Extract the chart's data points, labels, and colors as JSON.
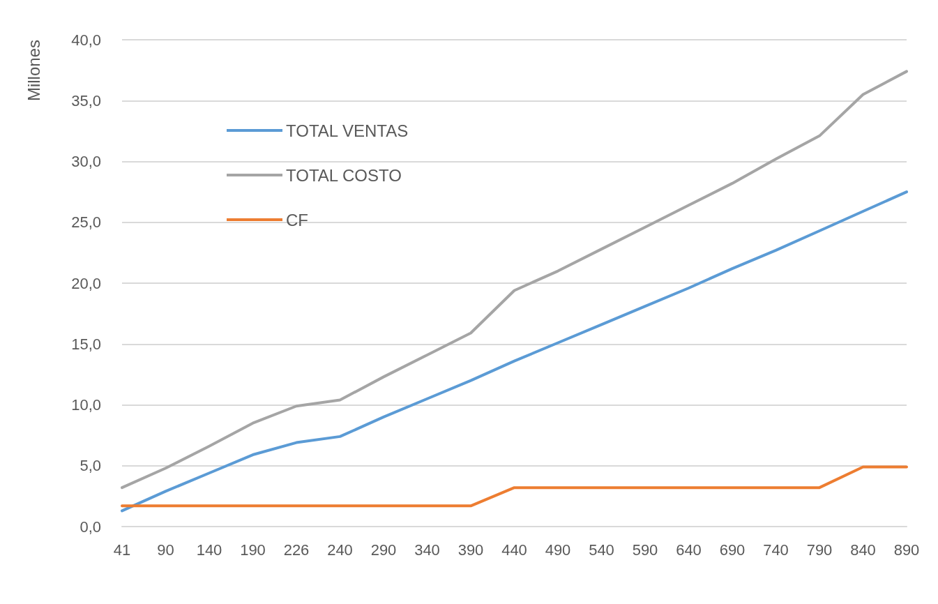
{
  "chart_data": {
    "type": "line",
    "ylabel": "Millones",
    "categories": [
      "41",
      "90",
      "140",
      "190",
      "226",
      "240",
      "290",
      "340",
      "390",
      "440",
      "490",
      "540",
      "590",
      "640",
      "690",
      "740",
      "790",
      "840",
      "890"
    ],
    "series": [
      {
        "name": "TOTAL VENTAS",
        "color": "#5b9bd5",
        "values": [
          1.3,
          2.9,
          4.4,
          5.9,
          6.9,
          7.4,
          9.0,
          10.5,
          12.0,
          13.6,
          15.1,
          16.6,
          18.1,
          19.6,
          21.2,
          22.7,
          24.3,
          25.9,
          27.5
        ]
      },
      {
        "name": "TOTAL COSTO",
        "color": "#a5a5a5",
        "values": [
          3.2,
          4.8,
          6.6,
          8.5,
          9.9,
          10.4,
          12.3,
          14.1,
          15.9,
          19.4,
          21.0,
          22.8,
          24.6,
          26.4,
          28.2,
          30.2,
          32.1,
          35.5,
          37.4
        ]
      },
      {
        "name": "CF",
        "color": "#ed7d31",
        "values": [
          1.7,
          1.7,
          1.7,
          1.7,
          1.7,
          1.7,
          1.7,
          1.7,
          1.7,
          3.2,
          3.2,
          3.2,
          3.2,
          3.2,
          3.2,
          3.2,
          3.2,
          4.9,
          4.9
        ]
      }
    ],
    "ylim": [
      0,
      40
    ],
    "yticks": [
      {
        "value": 0,
        "label": "0,0"
      },
      {
        "value": 5,
        "label": "5,0"
      },
      {
        "value": 10,
        "label": "10,0"
      },
      {
        "value": 15,
        "label": "15,0"
      },
      {
        "value": 20,
        "label": "20,0"
      },
      {
        "value": 25,
        "label": "25,0"
      },
      {
        "value": 30,
        "label": "30,0"
      },
      {
        "value": 35,
        "label": "35,0"
      },
      {
        "value": 40,
        "label": "40,0"
      }
    ],
    "grid": "y",
    "legend": "top left",
    "marker": "none",
    "line_style": "solid"
  }
}
